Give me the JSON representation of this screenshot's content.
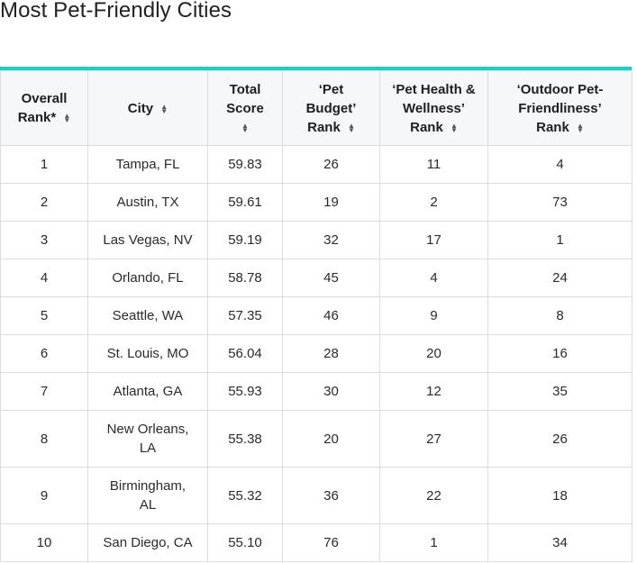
{
  "page": {
    "title": "Most Pet-Friendly Cities"
  },
  "table": {
    "accent_color": "#1ccfc9",
    "headers": [
      {
        "label": "Overall Rank*",
        "sortable": true
      },
      {
        "label": "City",
        "sortable": true
      },
      {
        "label": "Total Score",
        "sortable": true
      },
      {
        "label": "‘Pet Budget’ Rank",
        "sortable": true
      },
      {
        "label": "‘Pet Health & Wellness’ Rank",
        "sortable": true
      },
      {
        "label": "‘Outdoor Pet-Friendliness’ Rank",
        "sortable": true
      }
    ],
    "rows": [
      {
        "rank": "1",
        "city": "Tampa, FL",
        "score": "59.83",
        "budget": "26",
        "health": "11",
        "outdoor": "4"
      },
      {
        "rank": "2",
        "city": "Austin, TX",
        "score": "59.61",
        "budget": "19",
        "health": "2",
        "outdoor": "73"
      },
      {
        "rank": "3",
        "city": "Las Vegas, NV",
        "score": "59.19",
        "budget": "32",
        "health": "17",
        "outdoor": "1"
      },
      {
        "rank": "4",
        "city": "Orlando, FL",
        "score": "58.78",
        "budget": "45",
        "health": "4",
        "outdoor": "24"
      },
      {
        "rank": "5",
        "city": "Seattle, WA",
        "score": "57.35",
        "budget": "46",
        "health": "9",
        "outdoor": "8"
      },
      {
        "rank": "6",
        "city": "St. Louis, MO",
        "score": "56.04",
        "budget": "28",
        "health": "20",
        "outdoor": "16"
      },
      {
        "rank": "7",
        "city": "Atlanta, GA",
        "score": "55.93",
        "budget": "30",
        "health": "12",
        "outdoor": "35"
      },
      {
        "rank": "8",
        "city": "New Orleans, LA",
        "score": "55.38",
        "budget": "20",
        "health": "27",
        "outdoor": "26"
      },
      {
        "rank": "9",
        "city": "Birmingham, AL",
        "score": "55.32",
        "budget": "36",
        "health": "22",
        "outdoor": "18"
      },
      {
        "rank": "10",
        "city": "San Diego, CA",
        "score": "55.10",
        "budget": "76",
        "health": "1",
        "outdoor": "34"
      }
    ]
  }
}
